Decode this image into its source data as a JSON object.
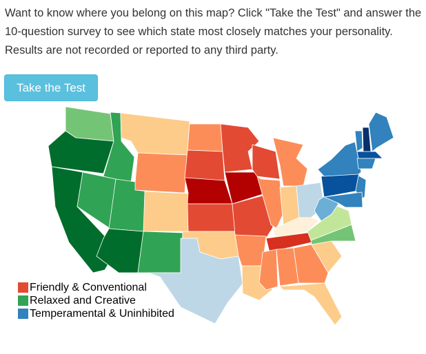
{
  "intro_text": "Want to know where you belong on this map? Click \"Take the Test\" and answer the 10-question survey to see which state most closely matches your personality. Results are not recorded or reported to any third party.",
  "take_test_button": "Take the Test",
  "legend": [
    {
      "label": "Friendly & Conventional",
      "color": "#e34a33"
    },
    {
      "label": "Relaxed and Creative",
      "color": "#31a354"
    },
    {
      "label": "Temperamental & Uninhibited",
      "color": "#3182bd"
    }
  ],
  "state_colors": {
    "WA": "#74c476",
    "OR": "#006d2c",
    "CA": "#006d2c",
    "NV": "#31a354",
    "ID": "#31a354",
    "MT": "#fdcc8a",
    "WY": "#fc8d59",
    "UT": "#31a354",
    "AZ": "#006d2c",
    "CO": "#fdcc8a",
    "NM": "#31a354",
    "ND": "#fc8d59",
    "SD": "#e34a33",
    "NE": "#b30000",
    "KS": "#e34a33",
    "OK": "#fdcc8a",
    "TX": "#bdd7e7",
    "MN": "#e34a33",
    "IA": "#b30000",
    "MO": "#e34a33",
    "AR": "#fc8d59",
    "LA": "#fdcc8a",
    "WI": "#e34a33",
    "IL": "#fc8d59",
    "MI": "#fc8d59",
    "IN": "#fdcc8a",
    "OH": "#bdd7e7",
    "KY": "#fef0d9",
    "TN": "#d7301f",
    "MS": "#fc8d59",
    "AL": "#fc8d59",
    "GA": "#fc8d59",
    "FL": "#fdcc8a",
    "SC": "#fdcc8a",
    "NC": "#74c476",
    "VA": "#c2e699",
    "WV": "#6baed6",
    "PA": "#08519c",
    "NY": "#3182bd",
    "NJ": "#3182bd",
    "MD": "#3182bd",
    "VT": "#3182bd",
    "NH": "#08306b",
    "ME": "#3182bd",
    "MA": "#08519c",
    "CT": "#3182bd"
  }
}
